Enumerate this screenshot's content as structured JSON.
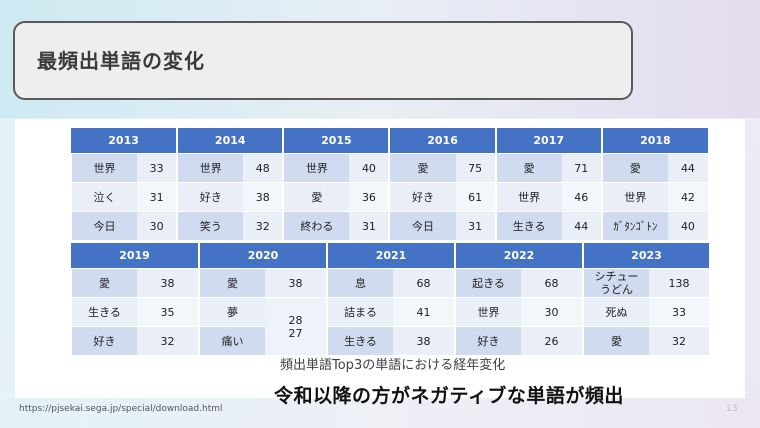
{
  "title": "最頻出単語の変化",
  "table1": {
    "years": [
      "2013",
      "2014",
      "2015",
      "2016",
      "2017",
      "2018"
    ],
    "rows": [
      [
        [
          "世界",
          "33"
        ],
        [
          "世界",
          "48"
        ],
        [
          "世界",
          "40"
        ],
        [
          "愛",
          "75"
        ],
        [
          "愛",
          "71"
        ],
        [
          "愛",
          "44"
        ]
      ],
      [
        [
          "泣く",
          "31"
        ],
        [
          "好き",
          "38"
        ],
        [
          "愛",
          "36"
        ],
        [
          "好き",
          "61"
        ],
        [
          "世界",
          "46"
        ],
        [
          "世界",
          "42"
        ]
      ],
      [
        [
          "今日",
          "30"
        ],
        [
          "笑う",
          "32"
        ],
        [
          "終わる",
          "31"
        ],
        [
          "今日",
          "31"
        ],
        [
          "生きる",
          "44"
        ],
        [
          "ｶﾞﾀﾝｺﾞﾄﾝ",
          "40"
        ]
      ]
    ]
  },
  "table2": {
    "years": [
      "2019",
      "2020",
      "2021",
      "2022",
      "2023"
    ],
    "rows": [
      {
        "y2019": [
          "愛",
          "38"
        ],
        "y2020": [
          "愛",
          "38"
        ],
        "y2021": [
          "息",
          "68"
        ],
        "y2022": [
          "起きる",
          "68"
        ],
        "y2023": [
          "シチュー\nうどん",
          "138"
        ]
      },
      {
        "y2019": [
          "生きる",
          "35"
        ],
        "y2020": [
          "夢",
          ""
        ],
        "y2021": [
          "詰まる",
          "41"
        ],
        "y2022": [
          "世界",
          "30"
        ],
        "y2023": [
          "死ぬ",
          "33"
        ]
      },
      {
        "y2019": [
          "好き",
          "32"
        ],
        "y2020": [
          "痛い",
          ""
        ],
        "y2021": [
          "生きる",
          "38"
        ],
        "y2022": [
          "好き",
          "26"
        ],
        "y2023": [
          "愛",
          "32"
        ]
      }
    ],
    "y2020_merged_count": "28\n27"
  },
  "caption": "頻出単語Top3の単語における経年変化",
  "url": "https://pjsekai.sega.jp/special/download.html",
  "conclusion": "令和以降の方がネガティブな単語が頻出",
  "page_number": "13"
}
